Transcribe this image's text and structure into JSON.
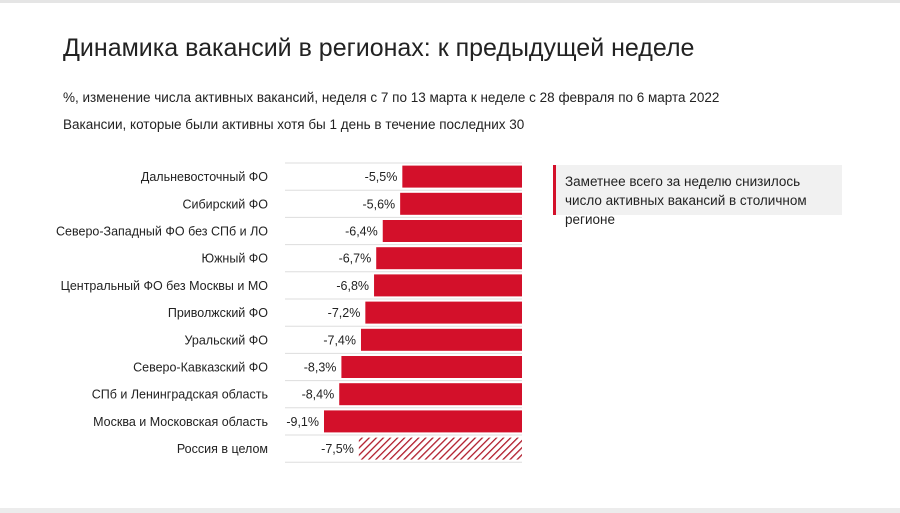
{
  "header": {
    "title": "Динамика вакансий в регионах: к предыдущей неделе",
    "subtitle": "%, изменение числа активных вакансий, неделя с 7 по 13 марта к неделе с 28 февраля по 6 марта 2022",
    "subtitle2": "Вакансии, которые были активны хотя бы 1 день в течение последних 30"
  },
  "callout": {
    "text": "Заметнее всего за неделю снизилось число активных вакансий в столичном регионе"
  },
  "colors": {
    "bar": "#d3102a",
    "hatch": "#b01a2a",
    "gridline": "#dddddd"
  },
  "chart_data": {
    "type": "bar",
    "orientation": "horizontal",
    "title": "Динамика вакансий в регионах: к предыдущей неделе",
    "xlabel": "",
    "ylabel": "",
    "xlim": [
      -9.1,
      0
    ],
    "categories": [
      "Дальневосточный ФО",
      "Сибирский ФО",
      "Северо-Западный ФО без СПб и ЛО",
      "Южный ФО",
      "Центральный ФО без Москвы и МО",
      "Приволжский ФО",
      "Уральский ФО",
      "Северо-Кавказский ФО",
      "СПб и Ленинградская область",
      "Москва и Московская область",
      "Россия в целом"
    ],
    "values": [
      -5.5,
      -5.6,
      -6.4,
      -6.7,
      -6.8,
      -7.2,
      -7.4,
      -8.3,
      -8.4,
      -9.1,
      -7.5
    ],
    "value_labels": [
      "-5,5%",
      "-5,6%",
      "-6,4%",
      "-6,7%",
      "-6,8%",
      "-7,2%",
      "-7,4%",
      "-8,3%",
      "-8,4%",
      "-9,1%",
      "-7,5%"
    ],
    "hatched": [
      false,
      false,
      false,
      false,
      false,
      false,
      false,
      false,
      false,
      false,
      true
    ]
  }
}
